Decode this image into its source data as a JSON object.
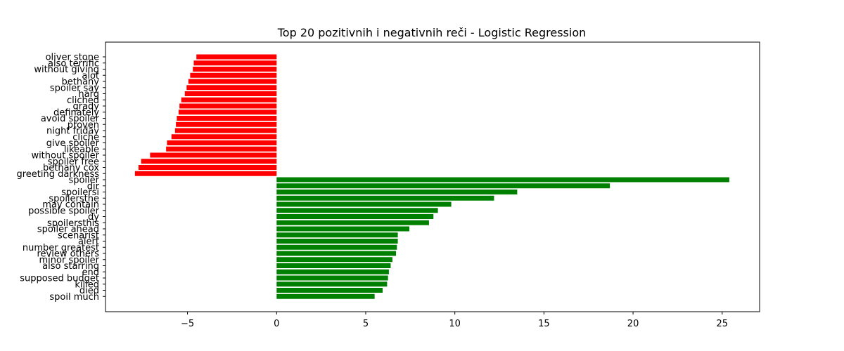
{
  "chart_data": {
    "type": "bar",
    "orientation": "horizontal",
    "title": "Top 20 pozitivnih i negativnih reči - Logistic Regression",
    "xlabel": "",
    "ylabel": "",
    "xlim": [
      -9.6,
      27.1
    ],
    "xticks": [
      -5,
      0,
      5,
      10,
      15,
      20,
      25
    ],
    "xtick_labels": [
      "−5",
      "0",
      "5",
      "10",
      "15",
      "20",
      "25"
    ],
    "grid": false,
    "colors": {
      "negative": "#ff0000",
      "positive": "#008000"
    },
    "categories": [
      "oliver stone",
      "also terrific",
      "without giving",
      "alot",
      "bethany",
      "spoiler say",
      "harg",
      "cliched",
      "grady",
      "definately",
      "avoid spoiler",
      "proven",
      "night friday",
      "cliche",
      "give spoiler",
      "likeable",
      "without spoiler",
      "spoiler free",
      "bethany cox",
      "greeting darkness",
      "spoiler",
      "dir",
      "spoilersi",
      "spoilersthe",
      "may contain",
      "possible spoiler",
      "dy",
      "spoilersthis",
      "spoiler ahead",
      "scenarist",
      "alert",
      "number greatest",
      "review others",
      "minor spoiler",
      "also starring",
      "end",
      "supposed budget",
      "killed",
      "died",
      "spoil much"
    ],
    "values": [
      -4.5,
      -4.65,
      -4.7,
      -4.85,
      -4.95,
      -5.05,
      -5.15,
      -5.35,
      -5.45,
      -5.5,
      -5.6,
      -5.65,
      -5.7,
      -5.9,
      -6.15,
      -6.2,
      -7.1,
      -7.6,
      -7.75,
      -7.95,
      25.4,
      18.7,
      13.5,
      12.2,
      9.8,
      9.05,
      8.8,
      8.55,
      7.45,
      6.8,
      6.8,
      6.75,
      6.7,
      6.5,
      6.4,
      6.3,
      6.25,
      6.2,
      5.95,
      5.5
    ]
  }
}
